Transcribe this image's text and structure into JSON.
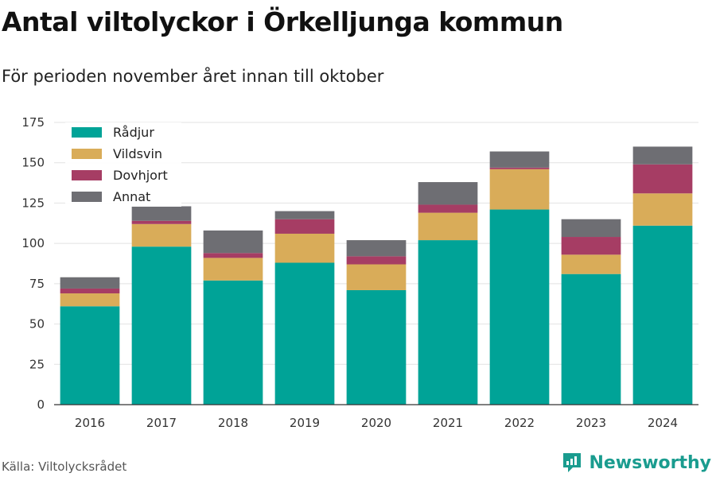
{
  "header": {
    "title": "Antal viltolyckor i Örkelljunga kommun",
    "subtitle": "För perioden november året innan till oktober"
  },
  "footer": {
    "source": "Källa: Viltolycksrådet",
    "brand": "Newsworthy"
  },
  "chart_data": {
    "type": "bar",
    "stacked": true,
    "categories": [
      "2016",
      "2017",
      "2018",
      "2019",
      "2020",
      "2021",
      "2022",
      "2023",
      "2024"
    ],
    "series": [
      {
        "name": "Rådjur",
        "color": "#00a397",
        "values": [
          61,
          98,
          77,
          88,
          71,
          102,
          121,
          81,
          111
        ]
      },
      {
        "name": "Vildsvin",
        "color": "#d9ac59",
        "values": [
          8,
          14,
          14,
          18,
          16,
          17,
          25,
          12,
          20
        ]
      },
      {
        "name": "Dovhjort",
        "color": "#a63d64",
        "values": [
          3,
          2,
          3,
          9,
          5,
          5,
          1,
          11,
          18
        ]
      },
      {
        "name": "Annat",
        "color": "#6e6e73",
        "values": [
          7,
          9,
          14,
          5,
          10,
          14,
          10,
          11,
          11
        ]
      }
    ],
    "yticks": [
      0,
      25,
      50,
      75,
      100,
      125,
      150,
      175
    ],
    "ylim": [
      0,
      175
    ],
    "grid": true,
    "legend_position": "top-left"
  }
}
